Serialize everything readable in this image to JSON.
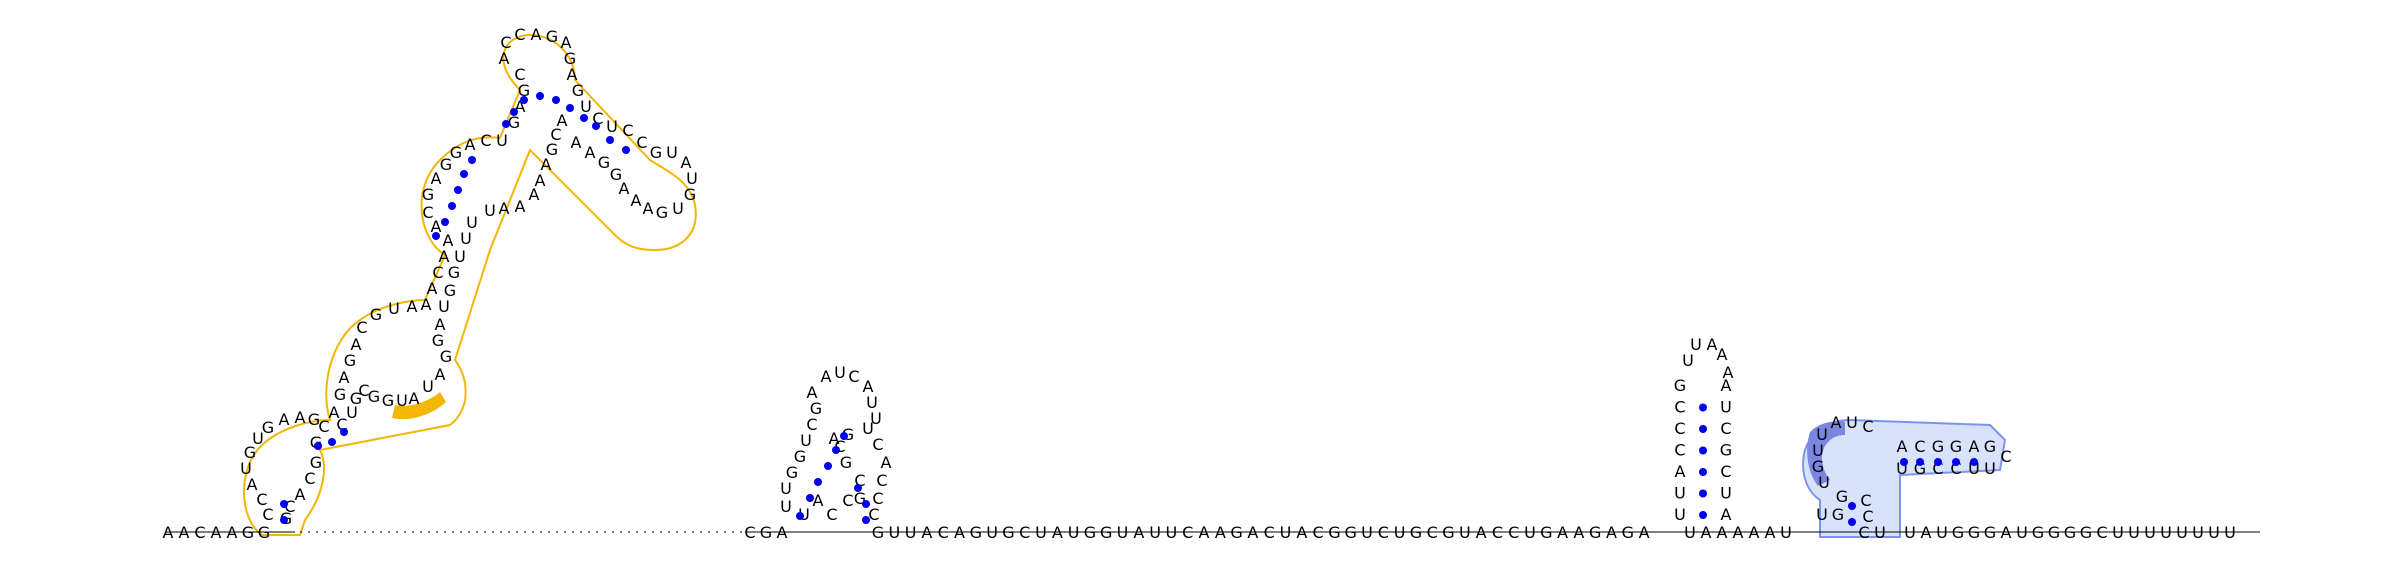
{
  "diagram": {
    "type": "rna-secondary-structure",
    "colors": {
      "nucleotide_text": "#000000",
      "base_pair_dot": "#0000ee",
      "highlight_region_1_outline": "#f2b705",
      "highlight_region_1_fill": "#f2b705",
      "highlight_region_2_fill": "#d8e3fb",
      "highlight_region_2_outline": "#7e93ef",
      "highlight_region_2_dark": "#7b86df"
    },
    "backbone_5prime": "AACAAGG",
    "backbone_mid_a": "CGA",
    "backbone_mid_b": "GUUACAGUGCUAUGGUAUUCAAGACUACGGUCUGCGUACCUGAAGAGA",
    "backbone_mid_c": "UAAAAAU",
    "backbone_3prime": "UAUGGGAUGGGGCUUUUUUUU",
    "hairpin_2": {
      "stem_5prime": "UUACCCG",
      "loop": "UUAAA",
      "stem_3prime": "AUCGCUA"
    },
    "hairpin_3": {
      "stem_5prime": "UGAACGGUC",
      "stem_3prime": "GACCGCUUC",
      "loop": "C"
    }
  }
}
